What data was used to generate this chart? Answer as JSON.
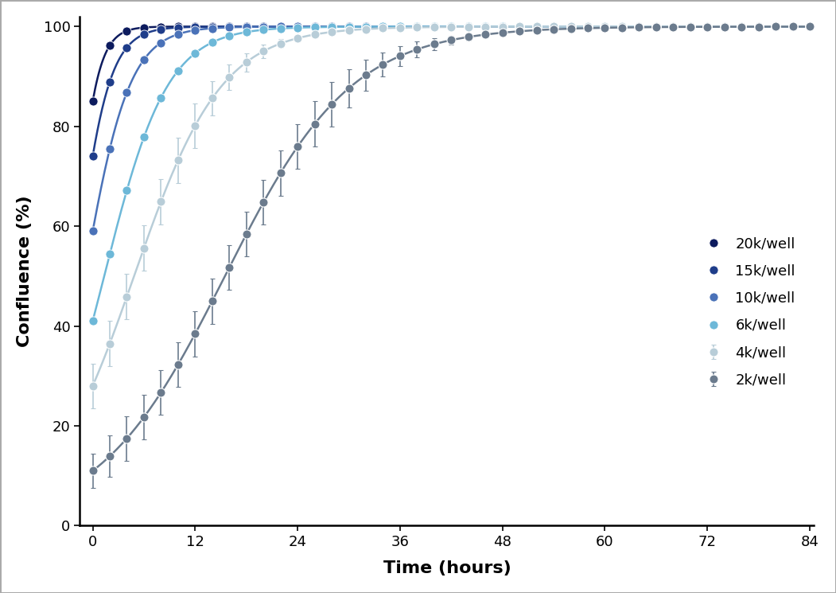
{
  "series": [
    {
      "label": "20k/well",
      "color": "#0d1b5e",
      "y0": 85,
      "K": 100,
      "r": 0.75,
      "error_scale": 0.0,
      "show_errors": false
    },
    {
      "label": "15k/well",
      "color": "#1f3d8a",
      "y0": 74,
      "K": 100,
      "r": 0.52,
      "error_scale": 0.0,
      "show_errors": false
    },
    {
      "label": "10k/well",
      "color": "#4a72b8",
      "y0": 59,
      "K": 100,
      "r": 0.38,
      "error_scale": 0.0,
      "show_errors": false
    },
    {
      "label": "6k/well",
      "color": "#6db8d8",
      "y0": 41,
      "K": 100,
      "r": 0.27,
      "error_scale": 0.0,
      "show_errors": false
    },
    {
      "label": "4k/well",
      "color": "#b8cdd8",
      "y0": 28,
      "K": 100,
      "r": 0.195,
      "error_scale": 2.0,
      "show_errors": true
    },
    {
      "label": "2k/well",
      "color": "#6b7b8d",
      "y0": 11,
      "K": 100,
      "r": 0.135,
      "error_scale": 2.5,
      "show_errors": true
    }
  ],
  "x_min": 0,
  "x_max": 84,
  "x_ticks": [
    0,
    12,
    24,
    36,
    48,
    60,
    72,
    84
  ],
  "y_min": 0,
  "y_max": 102,
  "y_ticks": [
    0,
    20,
    40,
    60,
    80,
    100
  ],
  "xlabel": "Time (hours)",
  "ylabel": "Confluence (%)",
  "marker_interval": 2,
  "marker_size": 8,
  "line_width": 1.8,
  "legend_fontsize": 13,
  "axis_label_fontsize": 16,
  "tick_fontsize": 13,
  "background_color": "#ffffff"
}
